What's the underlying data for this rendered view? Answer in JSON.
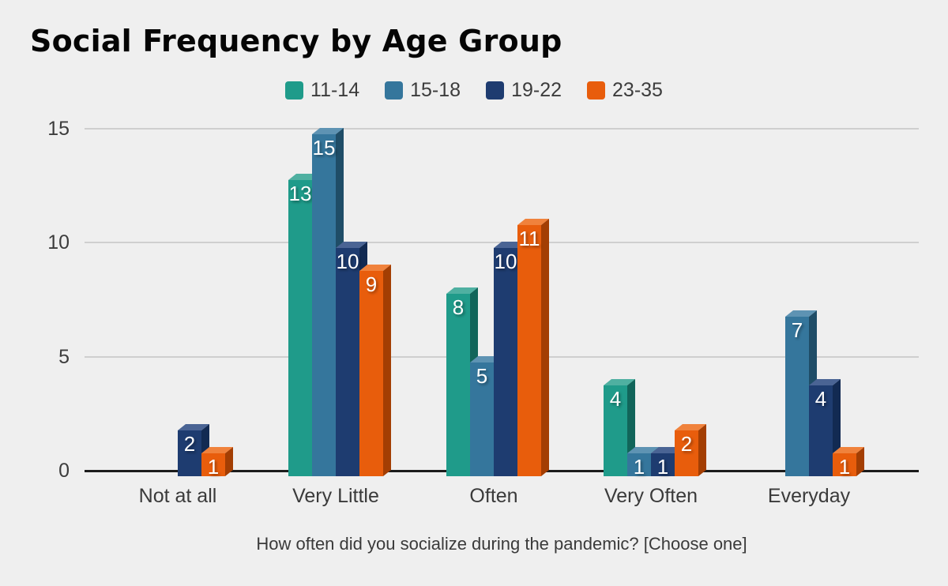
{
  "chart_data": {
    "type": "bar",
    "title": "Social Frequency by Age Group",
    "xlabel": "How often did you socialize during the pandemic? [Choose one]",
    "ylabel": "",
    "categories": [
      "Not at all",
      "Very Little",
      "Often",
      "Very Often",
      "Everyday"
    ],
    "series": [
      {
        "name": "11-14",
        "color": "#1F9B8A",
        "top_color": "#4FB0A1",
        "side_color": "#11655A",
        "values": [
          0,
          13,
          8,
          4,
          0
        ]
      },
      {
        "name": "15-18",
        "color": "#35769C",
        "top_color": "#5E93B3",
        "side_color": "#1F4D67",
        "values": [
          0,
          15,
          5,
          1,
          7
        ]
      },
      {
        "name": "19-22",
        "color": "#1E3C70",
        "top_color": "#4A6494",
        "side_color": "#122A52",
        "values": [
          2,
          10,
          10,
          1,
          4
        ]
      },
      {
        "name": "23-35",
        "color": "#E85D0C",
        "top_color": "#F0823C",
        "side_color": "#A33E03",
        "values": [
          1,
          9,
          11,
          2,
          1
        ]
      }
    ],
    "yticks": [
      0,
      5,
      10,
      15
    ],
    "ylim": [
      0,
      15
    ],
    "grid": true,
    "legend_position": "top",
    "value_labels_shown": true
  },
  "colors": {
    "background": "#EFEFEF",
    "gridline": "#CFCFCF",
    "axis_line": "#1C1C1C",
    "tick_text": "#3C3C3C",
    "title_text": "#050505",
    "bar_value_text": "#FFFFFF"
  }
}
